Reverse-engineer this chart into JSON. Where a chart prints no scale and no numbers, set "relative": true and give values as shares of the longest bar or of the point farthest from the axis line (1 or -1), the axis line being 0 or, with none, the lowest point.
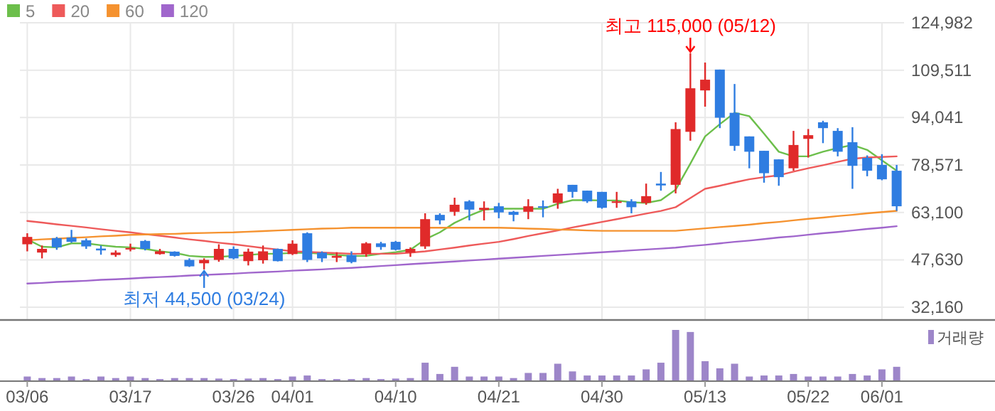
{
  "chart_data": [
    {
      "type": "candlestick",
      "categories": [
        null,
        null,
        null,
        null,
        null,
        null,
        null,
        null,
        null,
        null,
        null,
        null,
        null,
        null,
        null,
        null,
        null,
        null,
        null,
        null,
        null,
        null,
        null,
        null,
        null,
        null,
        null,
        null,
        null,
        null,
        null,
        null,
        null,
        null,
        null,
        null,
        null,
        null,
        null,
        null,
        null,
        null,
        null,
        null,
        null,
        null,
        null,
        null,
        null,
        null,
        null,
        null,
        null,
        null,
        null,
        null,
        null,
        null,
        null,
        null
      ],
      "ohlc": [
        [
          52700,
          56300,
          50400,
          55100
        ],
        [
          50000,
          52300,
          48100,
          51200
        ],
        [
          54700,
          55100,
          50900,
          51700
        ],
        [
          54900,
          57400,
          53200,
          53500
        ],
        [
          54000,
          54600,
          51200,
          52000
        ],
        [
          51300,
          52300,
          49300,
          50700
        ],
        [
          49200,
          50700,
          48600,
          50000
        ],
        [
          51000,
          52900,
          50400,
          51500
        ],
        [
          53800,
          54100,
          50700,
          51200
        ],
        [
          49500,
          51200,
          49300,
          50400
        ],
        [
          50300,
          50400,
          48700,
          48900
        ],
        [
          47600,
          48100,
          45300,
          45500
        ],
        [
          46500,
          48100,
          44500,
          47600
        ],
        [
          47600,
          52700,
          47000,
          51200
        ],
        [
          51200,
          52000,
          47800,
          48100
        ],
        [
          47200,
          51300,
          45800,
          50300
        ],
        [
          47500,
          52300,
          46400,
          50400
        ],
        [
          51200,
          51300,
          47100,
          47200
        ],
        [
          49500,
          54000,
          49200,
          52900
        ],
        [
          56300,
          56600,
          46900,
          47600
        ],
        [
          50000,
          50400,
          46900,
          48100
        ],
        [
          48300,
          50100,
          46900,
          48900
        ],
        [
          49200,
          50400,
          46500,
          46900
        ],
        [
          49600,
          53400,
          48600,
          53000
        ],
        [
          53000,
          53500,
          50900,
          51800
        ],
        [
          53500,
          53800,
          50700,
          50900
        ],
        [
          50000,
          51700,
          48600,
          51200
        ],
        [
          52000,
          62800,
          51200,
          60900
        ],
        [
          62300,
          62800,
          59200,
          60500
        ],
        [
          63300,
          67900,
          62000,
          65600
        ],
        [
          66700,
          67100,
          60500,
          64000
        ],
        [
          63900,
          66700,
          60500,
          64600
        ],
        [
          65100,
          66200,
          61200,
          63100
        ],
        [
          63300,
          63600,
          60200,
          62300
        ],
        [
          63300,
          67400,
          60900,
          65100
        ],
        [
          65100,
          67000,
          61500,
          64800
        ],
        [
          66200,
          70800,
          64300,
          69300
        ],
        [
          72100,
          72100,
          67900,
          69800
        ],
        [
          70200,
          70200,
          66200,
          66700
        ],
        [
          69800,
          69800,
          64300,
          64600
        ],
        [
          66200,
          69800,
          64600,
          66700
        ],
        [
          66700,
          67400,
          62800,
          64800
        ],
        [
          66200,
          72500,
          65600,
          68400
        ],
        [
          72500,
          76300,
          70200,
          71900
        ],
        [
          72100,
          92500,
          69300,
          90300
        ],
        [
          89400,
          115000,
          86500,
          103600
        ],
        [
          102900,
          112000,
          97600,
          106400
        ],
        [
          109700,
          109700,
          90600,
          94000
        ],
        [
          95600,
          105000,
          83200,
          84800
        ],
        [
          87900,
          87900,
          77500,
          82900
        ],
        [
          83200,
          83200,
          72800,
          75900
        ],
        [
          80400,
          80400,
          71800,
          74600
        ],
        [
          77500,
          89700,
          76700,
          85100
        ],
        [
          87100,
          90300,
          81000,
          88300
        ],
        [
          92500,
          93000,
          85700,
          90600
        ],
        [
          89700,
          90600,
          81400,
          82900
        ],
        [
          86000,
          90900,
          70800,
          78300
        ],
        [
          80900,
          81700,
          74900,
          76700
        ],
        [
          78600,
          82100,
          73600,
          73900
        ],
        [
          76700,
          78600,
          63600,
          65100
        ]
      ],
      "series": [
        {
          "type": "line",
          "name": "5",
          "color": "#6cbf4b",
          "values": [
            54300,
            51900,
            51700,
            53000,
            53000,
            52400,
            51900,
            51700,
            51200,
            50400,
            49900,
            48900,
            48600,
            48600,
            48900,
            49200,
            49600,
            49600,
            49900,
            49900,
            49600,
            49200,
            48900,
            48900,
            49600,
            50100,
            50900,
            54300,
            56600,
            59700,
            62000,
            64000,
            64300,
            64300,
            64300,
            64300,
            65900,
            67100,
            67100,
            67000,
            67000,
            66400,
            66200,
            67100,
            70500,
            79000,
            87900,
            91900,
            95600,
            94500,
            88800,
            82900,
            81400,
            81400,
            82900,
            84100,
            85100,
            83500,
            80100,
            76700
          ]
        },
        {
          "type": "line",
          "name": "20",
          "color": "#ee5a5a",
          "values": [
            60300,
            59800,
            59200,
            58700,
            58200,
            57600,
            57100,
            56600,
            56000,
            55500,
            54900,
            54300,
            53800,
            53200,
            52700,
            52100,
            51500,
            51000,
            50400,
            50200,
            50000,
            49800,
            49600,
            49600,
            49600,
            49600,
            50000,
            50400,
            51000,
            51600,
            52300,
            52900,
            53500,
            54400,
            55400,
            56300,
            57200,
            58200,
            59100,
            60000,
            60900,
            61800,
            62700,
            63600,
            64800,
            67800,
            70800,
            71800,
            72900,
            73900,
            74600,
            75200,
            76400,
            77500,
            78500,
            79600,
            80600,
            81000,
            81200,
            81400
          ]
        },
        {
          "type": "line",
          "name": "60",
          "color": "#f5922f",
          "values": [
            54000,
            54300,
            54500,
            54800,
            55000,
            55300,
            55500,
            55800,
            55900,
            56000,
            56100,
            56300,
            56400,
            56500,
            56600,
            56800,
            57000,
            57200,
            57400,
            57600,
            57800,
            57900,
            58100,
            58100,
            58100,
            58100,
            58100,
            58100,
            58100,
            58100,
            58100,
            58100,
            58100,
            58000,
            57800,
            57700,
            57500,
            57400,
            57200,
            57100,
            57100,
            57100,
            57100,
            57100,
            57100,
            57500,
            57900,
            58300,
            58700,
            59100,
            59600,
            60000,
            60500,
            61000,
            61400,
            61900,
            62300,
            62800,
            63200,
            63600
          ]
        },
        {
          "type": "line",
          "name": "120",
          "color": "#a066cc",
          "values": [
            39900,
            40100,
            40400,
            40600,
            40800,
            41100,
            41300,
            41500,
            41800,
            42000,
            42200,
            42500,
            42700,
            42900,
            43100,
            43400,
            43600,
            43800,
            44100,
            44300,
            44500,
            44800,
            45000,
            45300,
            45600,
            45900,
            46200,
            46500,
            46800,
            47100,
            47400,
            47700,
            48000,
            48300,
            48600,
            48900,
            49200,
            49500,
            49800,
            50100,
            50400,
            50700,
            51000,
            51300,
            51600,
            52100,
            52500,
            53000,
            53500,
            53900,
            54400,
            54900,
            55300,
            55800,
            56300,
            56700,
            57200,
            57700,
            58100,
            58600
          ]
        }
      ],
      "ylim": [
        28000,
        124982
      ],
      "yticks": [
        {
          "value": 124982,
          "label": "124,982"
        },
        {
          "value": 109511,
          "label": "109,511"
        },
        {
          "value": 94041,
          "label": "94,041"
        },
        {
          "value": 78571,
          "label": "78,571"
        },
        {
          "value": 63100,
          "label": "63,100"
        },
        {
          "value": 47630,
          "label": "47,630"
        },
        {
          "value": 32160,
          "label": "32,160"
        }
      ],
      "grid": true,
      "legend": "top left",
      "tick_labels": "y",
      "annotations": [
        {
          "text": "최고 115,000 (05/12)",
          "y": 115000
        },
        {
          "text": "최저 44,500 (03/24)",
          "y": 44500
        }
      ]
    },
    {
      "type": "bar",
      "categories": [
        "03/06",
        null,
        null,
        null,
        null,
        null,
        null,
        "03/17",
        null,
        null,
        null,
        null,
        null,
        null,
        "03/26",
        null,
        null,
        null,
        "04/01",
        null,
        null,
        null,
        null,
        null,
        null,
        "04/10",
        null,
        null,
        null,
        null,
        null,
        null,
        "04/21",
        null,
        null,
        null,
        null,
        null,
        null,
        "04/30",
        null,
        null,
        null,
        null,
        null,
        null,
        "05/13",
        null,
        null,
        null,
        null,
        null,
        null,
        "05/22",
        null,
        null,
        null,
        null,
        "06/01",
        null
      ],
      "relative": true,
      "series": [
        {
          "name": "거래량",
          "color": "#9d86c9",
          "values": [
            0.09,
            0.06,
            0.06,
            0.09,
            0.04,
            0.09,
            0.06,
            0.09,
            0.06,
            0.04,
            0.06,
            0.06,
            0.06,
            0.05,
            0.04,
            0.05,
            0.06,
            0.04,
            0.09,
            0.11,
            0.04,
            0.04,
            0.04,
            0.06,
            0.04,
            0.05,
            0.06,
            0.36,
            0.14,
            0.28,
            0.09,
            0.09,
            0.09,
            0.06,
            0.16,
            0.16,
            0.34,
            0.19,
            0.11,
            0.11,
            0.11,
            0.11,
            0.23,
            0.36,
            1,
            0.96,
            0.39,
            0.25,
            0.34,
            0.09,
            0.11,
            0.11,
            0.14,
            0.09,
            0.09,
            0.09,
            0.14,
            0.11,
            0.23,
            0.28
          ]
        }
      ],
      "legend": "top right",
      "tick_labels": "x"
    }
  ]
}
